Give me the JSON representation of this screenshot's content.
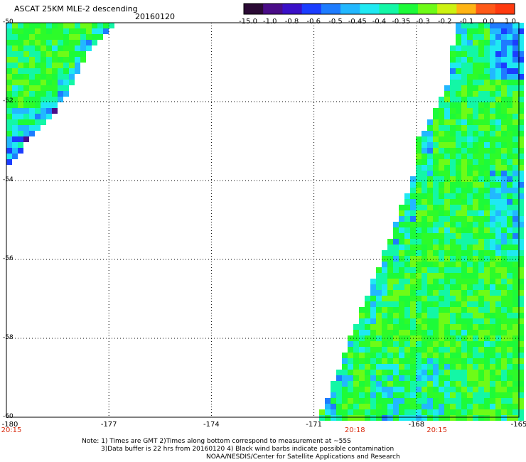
{
  "title": "ASCAT 25KM MLE-2 descending",
  "date": "20160120",
  "colorbar": {
    "labels": [
      "-15.0",
      "-1.0",
      "-0.8",
      "-0.6",
      "-0.5",
      "-0.45",
      "-0.4",
      "-0.35",
      "-0.3",
      "-0.2",
      "-0.1",
      "0.0",
      "1.0"
    ],
    "colors": [
      "#2b0a35",
      "#4a0d88",
      "#3a10c8",
      "#1b3dff",
      "#1e7cff",
      "#22b8ff",
      "#1fe9f2",
      "#13f7a6",
      "#1dfb39",
      "#6efb17",
      "#cdf211",
      "#ffb414",
      "#ff5a18",
      "#ff3a0f"
    ]
  },
  "map": {
    "lat_range": [
      -60,
      -50
    ],
    "lon_range": [
      -180,
      -165
    ],
    "lat_labels": [
      "-50",
      "-52",
      "-54",
      "-56",
      "-58",
      "-60"
    ],
    "lon_labels": [
      "-180",
      "-177",
      "-174",
      "-171",
      "-168",
      "-165"
    ],
    "time_labels": [
      {
        "text": "20:15",
        "lon": -180
      },
      {
        "text": "20:18",
        "lon": -169.8
      },
      {
        "text": "20:15",
        "lon": -167.4
      }
    ]
  },
  "notes": [
    "Note: 1) Times are GMT 2)Times along bottom correspond to measurement at ~55S",
    "3)Data buffer is 22 hrs from 20160120 4) Black wind barbs indicate possible contamination",
    "NOAA/NESDIS/Center for Satellite Applications and Research"
  ]
}
